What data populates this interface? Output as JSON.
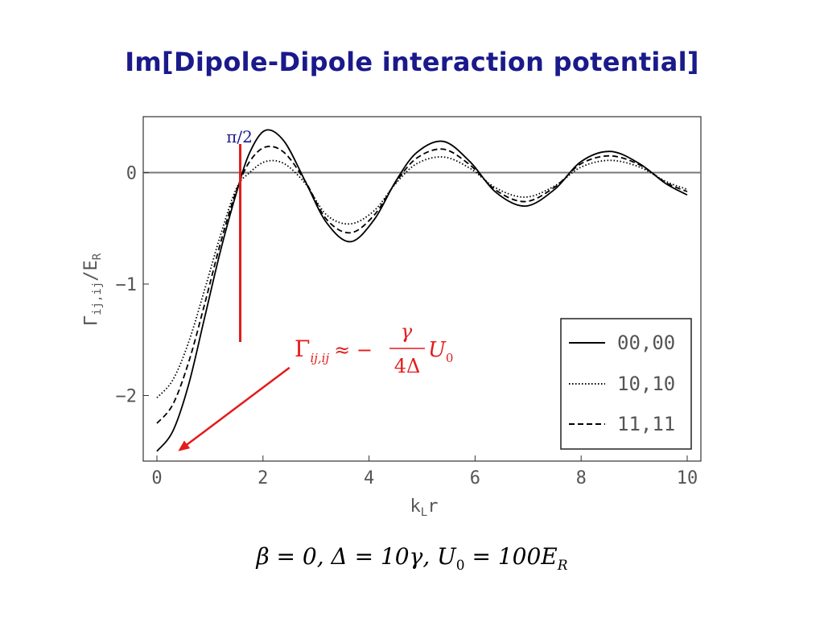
{
  "slide": {
    "title": "Im[Dipole-Dipole interaction potential]"
  },
  "chart_data": {
    "type": "line",
    "xlabel": {
      "main": "k",
      "sub": "L",
      "rest": "r"
    },
    "ylabel": {
      "main": "Γ",
      "sub1": "ij,ij",
      "mid": "/E",
      "sub2": "R"
    },
    "xlim": [
      -0.3,
      10.5
    ],
    "ylim": [
      -2.6,
      0.5
    ],
    "x_ticks": [
      0,
      2,
      4,
      6,
      8,
      10
    ],
    "x_tick_labels": [
      "0",
      "2",
      "4",
      "6",
      "8",
      "10"
    ],
    "y_ticks": [
      0,
      -1,
      -2
    ],
    "y_tick_labels": [
      "0",
      "−1",
      "−2"
    ],
    "zero_line": true,
    "grid": false,
    "legend_position": "bottom-right",
    "series": [
      {
        "name": "00,00",
        "style": "solid",
        "x": [
          0,
          0.3,
          0.6,
          0.9,
          1.2,
          1.5,
          1.75,
          2.05,
          2.4,
          2.8,
          3.2,
          3.65,
          4.1,
          4.5,
          4.9,
          5.4,
          5.9,
          6.4,
          6.95,
          7.5,
          8.0,
          8.55,
          9.1,
          9.6,
          10.0
        ],
        "y": [
          -2.5,
          -2.32,
          -1.9,
          -1.3,
          -0.7,
          -0.18,
          0.18,
          0.38,
          0.28,
          -0.08,
          -0.45,
          -0.62,
          -0.42,
          -0.08,
          0.18,
          0.28,
          0.1,
          -0.18,
          -0.3,
          -0.15,
          0.1,
          0.19,
          0.08,
          -0.1,
          -0.2
        ]
      },
      {
        "name": "10,10",
        "style": "dotted",
        "x": [
          0,
          0.3,
          0.6,
          0.9,
          1.2,
          1.5,
          1.75,
          2.05,
          2.4,
          2.8,
          3.2,
          3.65,
          4.1,
          4.5,
          4.9,
          5.4,
          5.9,
          6.4,
          6.95,
          7.5,
          8.0,
          8.55,
          9.1,
          9.6,
          10.0
        ],
        "y": [
          -2.02,
          -1.86,
          -1.52,
          -1.05,
          -0.56,
          -0.14,
          0.0,
          0.1,
          0.08,
          -0.1,
          -0.38,
          -0.46,
          -0.34,
          -0.1,
          0.08,
          0.14,
          0.04,
          -0.14,
          -0.22,
          -0.12,
          0.05,
          0.11,
          0.05,
          -0.08,
          -0.15
        ]
      },
      {
        "name": "11,11",
        "style": "dashed",
        "x": [
          0,
          0.3,
          0.6,
          0.9,
          1.2,
          1.5,
          1.75,
          2.05,
          2.4,
          2.8,
          3.2,
          3.65,
          4.1,
          4.5,
          4.9,
          5.4,
          5.9,
          6.4,
          6.95,
          7.5,
          8.0,
          8.55,
          9.1,
          9.6,
          10.0
        ],
        "y": [
          -2.25,
          -2.08,
          -1.7,
          -1.18,
          -0.63,
          -0.16,
          0.1,
          0.23,
          0.18,
          -0.08,
          -0.42,
          -0.54,
          -0.38,
          -0.09,
          0.13,
          0.21,
          0.07,
          -0.16,
          -0.26,
          -0.13,
          0.08,
          0.15,
          0.07,
          -0.09,
          -0.17
        ]
      }
    ],
    "annotations": {
      "vline_label": "π/2",
      "vline_x": 1.5708,
      "vline_y_range": [
        0.3,
        -1.52
      ],
      "arrow_from": [
        2.5,
        -1.75
      ],
      "arrow_to": [
        0.4,
        -2.5
      ],
      "equation": {
        "lhs": "Γ",
        "lhs_sub": "ij,ij",
        "approx": "≈ −",
        "numerator": "γ",
        "denominator": "4Δ",
        "rhs": "U",
        "rhs_sub": "0"
      }
    }
  },
  "footer": {
    "params": "β = 0,  Δ = 10γ,  U",
    "params_sub": "0",
    "params_tail": " = 100E",
    "params_tail_sub": "R"
  },
  "colors": {
    "title": "#1a1a8c",
    "annotation_red": "#e31b1b",
    "annotation_blue": "#1a1a8c",
    "curves": "#000000",
    "axis": "#555555"
  }
}
